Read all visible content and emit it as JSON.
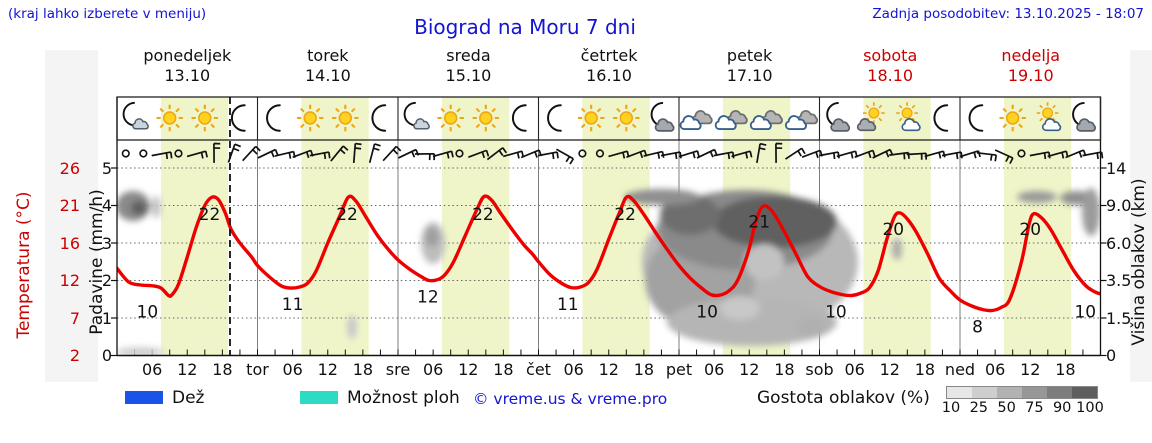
{
  "header": {
    "hint": "(kraj lahko izberete v meniju)",
    "title": "Biograd na Moru 7 dni",
    "updated": "Zadnja posodobitev: 13.10.2025 - 18:07"
  },
  "days": [
    {
      "name": "ponedeljek",
      "date": "13.10",
      "weekend": false
    },
    {
      "name": "torek",
      "date": "14.10",
      "weekend": false
    },
    {
      "name": "sreda",
      "date": "15.10",
      "weekend": false
    },
    {
      "name": "četrtek",
      "date": "16.10",
      "weekend": false
    },
    {
      "name": "petek",
      "date": "17.10",
      "weekend": false
    },
    {
      "name": "sobota",
      "date": "18.10",
      "weekend": true
    },
    {
      "name": "nedelja",
      "date": "19.10",
      "weekend": true
    }
  ],
  "axes": {
    "temp_label": "Temperatura (°C)",
    "temp_ticks": [
      "26",
      "21",
      "16",
      "12",
      "7",
      "2"
    ],
    "precip_label": "Padavine (mm/h)",
    "precip_ticks": [
      "5",
      "4",
      "3",
      "2",
      "1",
      "0"
    ],
    "height_label": "Višina oblakov (km)",
    "height_ticks": [
      "14",
      "9.0",
      "6.0",
      "3.5",
      "1.5",
      "0"
    ],
    "time_ticks": [
      "06",
      "12",
      "18"
    ],
    "day_abbrevs": [
      "tor",
      "sre",
      "čet",
      "pet",
      "sob",
      "ned"
    ]
  },
  "legend": {
    "rain_label": "Dež",
    "rain_color": "#1a53e8",
    "showers_label": "Možnost ploh",
    "showers_color": "#2bdcc3",
    "copyright": "© vreme.us & vreme.pro",
    "copyright_color": "#1414d2",
    "density_label": "Gostota oblakov (%)",
    "density_ticks": [
      "10",
      "25",
      "50",
      "75",
      "90",
      "100"
    ],
    "density_colors": [
      "#e7e7e7",
      "#cecece",
      "#b2b2b2",
      "#979797",
      "#7d7d7d",
      "#5e5e5e"
    ]
  },
  "icons": [
    "moon-small-cloud",
    "sun",
    "sun",
    "moon",
    "moon",
    "sun",
    "sun",
    "moon",
    "moon-small-cloud",
    "sun",
    "sun",
    "moon",
    "moon",
    "sun",
    "sun",
    "moon-gray-cloud",
    "two-clouds",
    "two-clouds",
    "two-clouds",
    "two-clouds",
    "moon-gray-cloud",
    "sun-gray-cloud",
    "sun-white-cloud",
    "moon",
    "moon",
    "sun",
    "sun-white-cloud",
    "moon-gray-cloud"
  ],
  "wind": [
    "o",
    "o",
    45,
    "o",
    40,
    -35,
    -15,
    8,
    30,
    42,
    35,
    45,
    5,
    -30,
    -20,
    8,
    30,
    55,
    40,
    "o",
    35,
    18,
    40,
    33,
    45,
    85,
    "o",
    "o",
    40,
    35,
    42,
    45,
    38,
    30,
    45,
    40,
    -25,
    -35,
    22,
    35,
    45,
    40,
    35,
    30,
    48,
    52,
    40,
    45,
    38,
    62,
    80,
    "o",
    45,
    40,
    33,
    45
  ],
  "chart_data": {
    "type": "line",
    "title": "Biograd na Moru 7 dni",
    "x_axis": "time (7 days, hourly)",
    "x_range_hours": [
      0,
      168
    ],
    "temp_axis_anchors": [
      [
        2,
        355.5
      ],
      [
        7,
        318
      ],
      [
        12,
        280.5
      ],
      [
        16,
        243
      ],
      [
        21,
        205.5
      ],
      [
        26,
        168
      ]
    ],
    "daylight_band_hours": [
      7.5,
      19
    ],
    "daylight_band_color": "#eff5c8",
    "current_time_hour": 19.3,
    "grid": true,
    "series": [
      {
        "name": "Temperatura",
        "color": "#ee0000",
        "points": [
          [
            0,
            13.3
          ],
          [
            2,
            11.8
          ],
          [
            4,
            11.4
          ],
          [
            6,
            11.3
          ],
          [
            7.5,
            11.0
          ],
          [
            8.8,
            10.0
          ],
          [
            9.4,
            10.1
          ],
          [
            10.5,
            11.5
          ],
          [
            12,
            14.5
          ],
          [
            13.5,
            18
          ],
          [
            15,
            21
          ],
          [
            16.2,
            22.1
          ],
          [
            17.3,
            21.8
          ],
          [
            18.5,
            20
          ],
          [
            19.5,
            17.8
          ],
          [
            21,
            16
          ],
          [
            23,
            14.5
          ],
          [
            24,
            13.6
          ],
          [
            26,
            12.4
          ],
          [
            28,
            11.3
          ],
          [
            29.5,
            11.0
          ],
          [
            31,
            11.1
          ],
          [
            32.5,
            11.6
          ],
          [
            34,
            13
          ],
          [
            36,
            16
          ],
          [
            38,
            19.5
          ],
          [
            39.5,
            22.1
          ],
          [
            40.8,
            21.6
          ],
          [
            42.5,
            19.5
          ],
          [
            44.5,
            17
          ],
          [
            46.5,
            15.2
          ],
          [
            48,
            14.2
          ],
          [
            50,
            13.2
          ],
          [
            52,
            12.4
          ],
          [
            53.3,
            12.0
          ],
          [
            54.8,
            12.1
          ],
          [
            56,
            12.6
          ],
          [
            57.5,
            14
          ],
          [
            59.5,
            17
          ],
          [
            61.5,
            20.5
          ],
          [
            62.7,
            22.2
          ],
          [
            64,
            21.7
          ],
          [
            65.5,
            20
          ],
          [
            67.5,
            17.8
          ],
          [
            69.5,
            15.8
          ],
          [
            71,
            14.8
          ],
          [
            72,
            14.0
          ],
          [
            74,
            12.6
          ],
          [
            76,
            11.6
          ],
          [
            77.6,
            11.05
          ],
          [
            79,
            11.1
          ],
          [
            80.5,
            11.7
          ],
          [
            82,
            13.2
          ],
          [
            84,
            16.5
          ],
          [
            85.8,
            20
          ],
          [
            87,
            22.1
          ],
          [
            88.2,
            21.7
          ],
          [
            90,
            19.8
          ],
          [
            92,
            17.4
          ],
          [
            94,
            15.3
          ],
          [
            96,
            13.6
          ],
          [
            98,
            12.2
          ],
          [
            100,
            10.9
          ],
          [
            101.5,
            10.1
          ],
          [
            103,
            10.05
          ],
          [
            104.5,
            10.6
          ],
          [
            106,
            12
          ],
          [
            107.8,
            15
          ],
          [
            109,
            18.5
          ],
          [
            110,
            20.6
          ],
          [
            111,
            20.9
          ],
          [
            112.3,
            19.8
          ],
          [
            114,
            17.5
          ],
          [
            116,
            14.8
          ],
          [
            118,
            12.4
          ],
          [
            120,
            11.2
          ],
          [
            122,
            10.5
          ],
          [
            124,
            10.1
          ],
          [
            125.5,
            10.0
          ],
          [
            127,
            10.3
          ],
          [
            128.5,
            11
          ],
          [
            130,
            13
          ],
          [
            131.5,
            16.5
          ],
          [
            132.8,
            19.5
          ],
          [
            133.8,
            20.0
          ],
          [
            135,
            19.2
          ],
          [
            136.5,
            17.5
          ],
          [
            138.5,
            14.8
          ],
          [
            140.5,
            12.2
          ],
          [
            142.5,
            10.5
          ],
          [
            144,
            9.4
          ],
          [
            146,
            8.6
          ],
          [
            148,
            8.1
          ],
          [
            149.5,
            8.0
          ],
          [
            151,
            8.4
          ],
          [
            152.5,
            9.5
          ],
          [
            154.5,
            14
          ],
          [
            155.8,
            18.5
          ],
          [
            156.6,
            19.9
          ],
          [
            158,
            19.3
          ],
          [
            159.5,
            17.8
          ],
          [
            161.5,
            15.2
          ],
          [
            163.5,
            13
          ],
          [
            165.5,
            11.3
          ],
          [
            167,
            10.5
          ],
          [
            168,
            10.2
          ]
        ]
      }
    ],
    "point_labels": [
      {
        "t": "10",
        "h": 5.2,
        "v": 10
      },
      {
        "t": "22",
        "h": 15.8,
        "v": 22
      },
      {
        "t": "11",
        "h": 30,
        "v": 11
      },
      {
        "t": "22",
        "h": 39.3,
        "v": 22
      },
      {
        "t": "12",
        "h": 53.1,
        "v": 12
      },
      {
        "t": "22",
        "h": 62.5,
        "v": 22
      },
      {
        "t": "11",
        "h": 77,
        "v": 11
      },
      {
        "t": "22",
        "h": 86.8,
        "v": 22
      },
      {
        "t": "10",
        "h": 100.8,
        "v": 10
      },
      {
        "t": "21",
        "h": 109.7,
        "v": 21
      },
      {
        "t": "10",
        "h": 122.8,
        "v": 10
      },
      {
        "t": "20",
        "h": 132.6,
        "v": 20
      },
      {
        "t": "8",
        "h": 147,
        "v": 8
      },
      {
        "t": "20",
        "h": 156,
        "v": 20
      },
      {
        "t": "10",
        "h": 165.4,
        "v": 10
      }
    ],
    "cloud_areas": [
      [
        133,
        206,
        17,
        15,
        "#8a8a8a"
      ],
      [
        139,
        208,
        8,
        7,
        "#5f5f5f"
      ],
      [
        156,
        207,
        5,
        11,
        "#c4c4c4"
      ],
      [
        140,
        352,
        24,
        5,
        "#cfcfcf"
      ],
      [
        352,
        327,
        5,
        12,
        "#c9c9c9"
      ],
      [
        433,
        243,
        12,
        21,
        "#bdbdbd"
      ],
      [
        432,
        237,
        7,
        10,
        "#9e9e9e"
      ],
      [
        750,
        262,
        108,
        72,
        "#b8b8b8"
      ],
      [
        700,
        280,
        55,
        48,
        "#a2a2a2"
      ],
      [
        745,
        230,
        88,
        40,
        "#8a8a8a"
      ],
      [
        775,
        222,
        62,
        26,
        "#606060"
      ],
      [
        690,
        215,
        30,
        20,
        "#6e6e6e"
      ],
      [
        662,
        197,
        38,
        8,
        "#8f8f8f"
      ],
      [
        764,
        262,
        20,
        18,
        "#c2c2c2"
      ],
      [
        752,
        322,
        85,
        24,
        "#b5b5b5"
      ],
      [
        740,
        308,
        20,
        12,
        "#c8c8c8"
      ],
      [
        812,
        327,
        16,
        11,
        "#b0b0b0"
      ],
      [
        897,
        249,
        5,
        11,
        "#ababab"
      ],
      [
        1037,
        197,
        20,
        6,
        "#9a9a9a"
      ],
      [
        1077,
        198,
        17,
        7,
        "#8f8f8f"
      ],
      [
        1091,
        212,
        9,
        24,
        "#9b9b9b"
      ]
    ]
  }
}
